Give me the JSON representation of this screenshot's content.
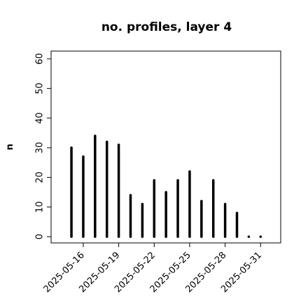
{
  "chart_data": {
    "type": "line_h",
    "title": "no. profiles, layer 4",
    "ylabel": "n",
    "x": [
      "2025-05-15",
      "2025-05-16",
      "2025-05-17",
      "2025-05-18",
      "2025-05-19",
      "2025-05-20",
      "2025-05-21",
      "2025-05-22",
      "2025-05-23",
      "2025-05-24",
      "2025-05-25",
      "2025-05-26",
      "2025-05-27",
      "2025-05-28",
      "2025-05-29",
      "2025-05-30",
      "2025-05-31"
    ],
    "values": [
      30,
      27,
      34,
      32,
      31,
      14,
      11,
      19,
      15,
      19,
      22,
      12,
      19,
      11,
      8,
      0,
      0
    ],
    "color": "#000000",
    "xlim": [
      "2025-05-13T06:43",
      "2025-06-01T16:48"
    ],
    "xticks": [
      "2025-05-16",
      "2025-05-19",
      "2025-05-22",
      "2025-05-25",
      "2025-05-28",
      "2025-05-31"
    ],
    "xtick_colors": [
      "#000000",
      "#000000",
      "#228b22",
      "#000000",
      "#000000",
      "#000000"
    ],
    "ylim": [
      -2.1,
      62.6
    ],
    "yticks": [
      0,
      10,
      20,
      30,
      40,
      50,
      60
    ]
  }
}
